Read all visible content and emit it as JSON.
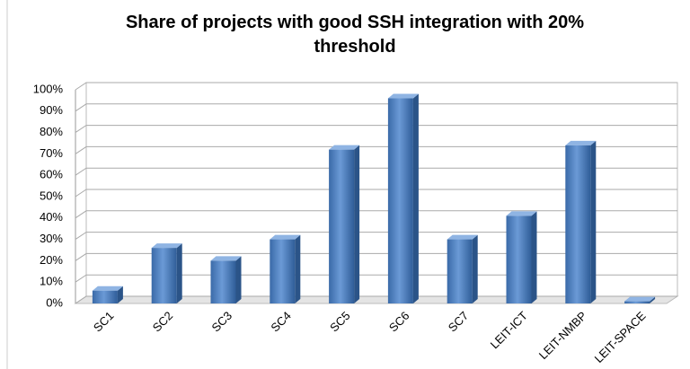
{
  "chart_data": {
    "type": "bar",
    "title": "Share of projects with good SSH integration with 20% threshold",
    "categories": [
      "SC1",
      "SC2",
      "SC3",
      "SC4",
      "SC5",
      "SC6",
      "SC7",
      "LEIT-ICT",
      "LEIT-NMBP",
      "LEIT-SPACE"
    ],
    "values": [
      6,
      26,
      20,
      30,
      72,
      96,
      30,
      41,
      74,
      1
    ],
    "color": "#4a7ebb",
    "ylim": [
      0,
      100
    ],
    "yticks": [
      {
        "value": 0,
        "label": "0%"
      },
      {
        "value": 10,
        "label": "10%"
      },
      {
        "value": 20,
        "label": "20%"
      },
      {
        "value": 30,
        "label": "30%"
      },
      {
        "value": 40,
        "label": "40%"
      },
      {
        "value": 50,
        "label": "50%"
      },
      {
        "value": 60,
        "label": "60%"
      },
      {
        "value": 70,
        "label": "70%"
      },
      {
        "value": 80,
        "label": "80%"
      },
      {
        "value": 90,
        "label": "90%"
      },
      {
        "value": 100,
        "label": "100%"
      }
    ],
    "grid": true
  }
}
